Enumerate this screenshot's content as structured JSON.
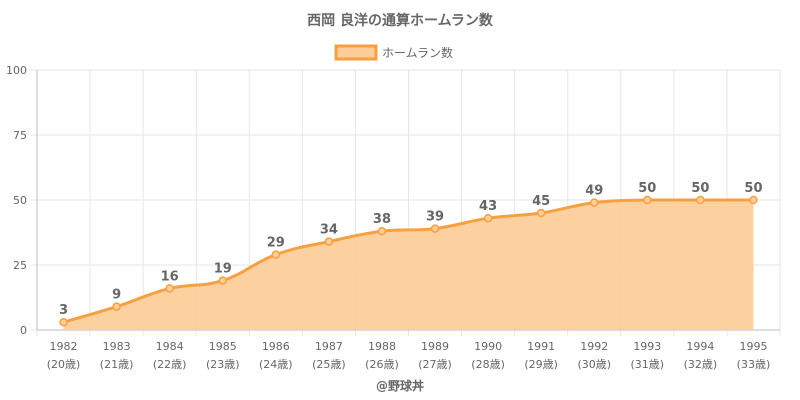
{
  "chart_data": {
    "type": "area",
    "title": "西岡 良洋の通算ホームラン数",
    "legend": {
      "label": "ホームラン数",
      "position": "top"
    },
    "categories": [
      "1982",
      "1983",
      "1984",
      "1985",
      "1986",
      "1987",
      "1988",
      "1989",
      "1990",
      "1991",
      "1992",
      "1993",
      "1994",
      "1995"
    ],
    "sub_labels": [
      "(20歳)",
      "(21歳)",
      "(22歳)",
      "(23歳)",
      "(24歳)",
      "(25歳)",
      "(26歳)",
      "(27歳)",
      "(28歳)",
      "(29歳)",
      "(30歳)",
      "(31歳)",
      "(32歳)",
      "(33歳)"
    ],
    "series": [
      {
        "name": "ホームラン数",
        "values": [
          3,
          9,
          16,
          19,
          29,
          34,
          38,
          39,
          43,
          45,
          49,
          50,
          50,
          50
        ]
      }
    ],
    "ylim": [
      0,
      100
    ],
    "yticks": [
      0,
      25,
      50,
      75,
      100
    ],
    "grid": true,
    "colors": {
      "line": "#f5a142",
      "fill": "#fdcd9a",
      "grid": "#e6e6e6",
      "text": "#666666"
    }
  },
  "watermark": "@野球丼"
}
